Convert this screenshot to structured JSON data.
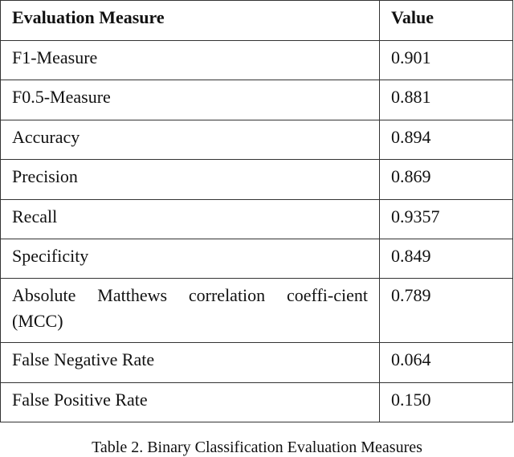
{
  "table": {
    "header": [
      "Evaluation Measure",
      "Value"
    ],
    "rows": [
      [
        "F1-Measure",
        "0.901"
      ],
      [
        "F0.5-Measure",
        "0.881"
      ],
      [
        "Accuracy",
        "0.894"
      ],
      [
        "Precision",
        "0.869"
      ],
      [
        "Recall",
        "0.9357"
      ],
      [
        "Specificity",
        "0.849"
      ],
      [
        "Absolute Matthews correlation coeffi-cient (MCC)",
        "0.789"
      ],
      [
        "False Negative Rate",
        "0.064"
      ],
      [
        "False Positive Rate",
        "0.150"
      ]
    ]
  },
  "caption": "Table 2. Binary Classification Evaluation Measures"
}
